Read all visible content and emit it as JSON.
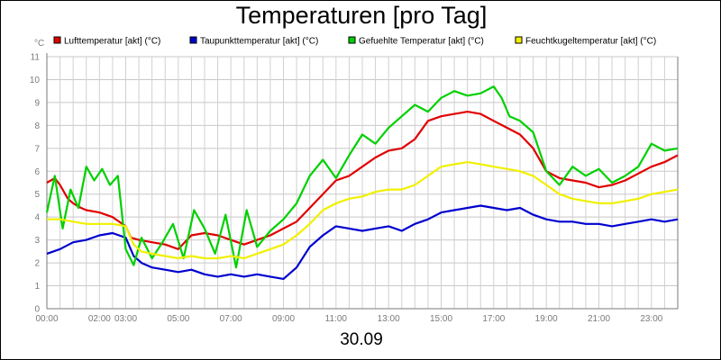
{
  "chart_data": {
    "type": "line",
    "title": "Temperaturen [pro Tag]",
    "xlabel": "30.09",
    "ylabel": "°C",
    "xlim": [
      0,
      24
    ],
    "ylim": [
      0,
      11
    ],
    "y_ticks": [
      "0",
      "1",
      "2",
      "3",
      "4",
      "5",
      "6",
      "7",
      "8",
      "9",
      "10",
      "11"
    ],
    "x_ticks": [
      {
        "label": "00:00",
        "at": 0
      },
      {
        "label": "02:00",
        "at": 2
      },
      {
        "label": "03:00",
        "at": 3
      },
      {
        "label": "05:00",
        "at": 5
      },
      {
        "label": "07:00",
        "at": 7
      },
      {
        "label": "09:00",
        "at": 9
      },
      {
        "label": "11:00",
        "at": 11
      },
      {
        "label": "13:00",
        "at": 13
      },
      {
        "label": "15:00",
        "at": 15
      },
      {
        "label": "17:00",
        "at": 17
      },
      {
        "label": "19:00",
        "at": 19
      },
      {
        "label": "21:00",
        "at": 21
      },
      {
        "label": "23:00",
        "at": 23
      }
    ],
    "grid": true,
    "legend_position": "top",
    "series": [
      {
        "name": "Lufttemperatur [akt] (°C)",
        "color": "#e00000",
        "x": [
          0,
          0.3,
          0.5,
          0.8,
          1,
          1.3,
          1.5,
          2,
          2.5,
          3,
          3.2,
          3.5,
          4,
          4.5,
          5,
          5.5,
          6,
          6.5,
          7,
          7.5,
          8,
          8.5,
          9,
          9.5,
          10,
          10.5,
          11,
          11.5,
          12,
          12.5,
          13,
          13.5,
          14,
          14.5,
          15,
          15.5,
          16,
          16.5,
          17,
          17.5,
          18,
          18.5,
          19,
          19.5,
          20,
          20.5,
          21,
          21.5,
          22,
          22.5,
          23,
          23.5,
          24
        ],
        "y": [
          5.5,
          5.7,
          5.4,
          4.8,
          4.6,
          4.4,
          4.3,
          4.2,
          4.0,
          3.6,
          3.1,
          3.0,
          2.9,
          2.8,
          2.6,
          3.2,
          3.3,
          3.2,
          3.0,
          2.8,
          3.0,
          3.2,
          3.5,
          3.8,
          4.4,
          5.0,
          5.6,
          5.8,
          6.2,
          6.6,
          6.9,
          7.0,
          7.4,
          8.2,
          8.4,
          8.5,
          8.6,
          8.5,
          8.2,
          7.9,
          7.6,
          7.0,
          6.0,
          5.7,
          5.6,
          5.5,
          5.3,
          5.4,
          5.6,
          5.9,
          6.2,
          6.4,
          6.7
        ]
      },
      {
        "name": "Taupunkttemperatur [akt] (°C)",
        "color": "#0000d0",
        "x": [
          0,
          0.5,
          1,
          1.5,
          2,
          2.5,
          3,
          3.3,
          3.6,
          4,
          4.5,
          5,
          5.5,
          6,
          6.5,
          7,
          7.5,
          8,
          8.5,
          9,
          9.5,
          10,
          10.5,
          11,
          11.5,
          12,
          12.5,
          13,
          13.5,
          14,
          14.5,
          15,
          15.5,
          16,
          16.5,
          17,
          17.5,
          18,
          18.5,
          19,
          19.5,
          20,
          20.5,
          21,
          21.5,
          22,
          22.5,
          23,
          23.5,
          24
        ],
        "y": [
          2.4,
          2.6,
          2.9,
          3.0,
          3.2,
          3.3,
          3.1,
          2.3,
          2.0,
          1.8,
          1.7,
          1.6,
          1.7,
          1.5,
          1.4,
          1.5,
          1.4,
          1.5,
          1.4,
          1.3,
          1.8,
          2.7,
          3.2,
          3.6,
          3.5,
          3.4,
          3.5,
          3.6,
          3.4,
          3.7,
          3.9,
          4.2,
          4.3,
          4.4,
          4.5,
          4.4,
          4.3,
          4.4,
          4.1,
          3.9,
          3.8,
          3.8,
          3.7,
          3.7,
          3.6,
          3.7,
          3.8,
          3.9,
          3.8,
          3.9
        ]
      },
      {
        "name": "Gefuehlte Temperatur [akt] (°C)",
        "color": "#00d000",
        "x": [
          0,
          0.3,
          0.6,
          0.9,
          1.2,
          1.5,
          1.8,
          2.1,
          2.4,
          2.7,
          3.0,
          3.3,
          3.6,
          4.0,
          4.4,
          4.8,
          5.2,
          5.6,
          6.0,
          6.4,
          6.8,
          7.2,
          7.6,
          8.0,
          8.5,
          9.0,
          9.5,
          10.0,
          10.5,
          11.0,
          11.5,
          12.0,
          12.5,
          13.0,
          13.5,
          14.0,
          14.5,
          15.0,
          15.5,
          16.0,
          16.5,
          17.0,
          17.3,
          17.6,
          18.0,
          18.5,
          19.0,
          19.5,
          20.0,
          20.5,
          21.0,
          21.5,
          22.0,
          22.5,
          23.0,
          23.5,
          24.0
        ],
        "y": [
          4.2,
          5.8,
          3.5,
          5.2,
          4.4,
          6.2,
          5.6,
          6.1,
          5.4,
          5.8,
          2.6,
          1.9,
          3.1,
          2.2,
          2.9,
          3.7,
          2.2,
          4.3,
          3.5,
          2.4,
          4.1,
          1.8,
          4.3,
          2.7,
          3.4,
          3.9,
          4.6,
          5.8,
          6.5,
          5.7,
          6.7,
          7.6,
          7.2,
          7.9,
          8.4,
          8.9,
          8.6,
          9.2,
          9.5,
          9.3,
          9.4,
          9.7,
          9.2,
          8.4,
          8.2,
          7.7,
          6.0,
          5.4,
          6.2,
          5.8,
          6.1,
          5.5,
          5.8,
          6.2,
          7.2,
          6.9,
          7.0
        ]
      },
      {
        "name": "Feuchtkugeltemperatur [akt] (°C)",
        "color": "#f0f000",
        "x": [
          0,
          0.5,
          1,
          1.5,
          2,
          2.5,
          3,
          3.3,
          3.6,
          4,
          4.5,
          5,
          5.5,
          6,
          6.5,
          7,
          7.5,
          8,
          8.5,
          9,
          9.5,
          10,
          10.5,
          11,
          11.5,
          12,
          12.5,
          13,
          13.5,
          14,
          14.5,
          15,
          15.5,
          16,
          16.5,
          17,
          17.5,
          18,
          18.5,
          19,
          19.5,
          20,
          20.5,
          21,
          21.5,
          22,
          22.5,
          23,
          23.5,
          24
        ],
        "y": [
          3.9,
          3.9,
          3.8,
          3.7,
          3.7,
          3.7,
          3.6,
          2.8,
          2.5,
          2.4,
          2.3,
          2.2,
          2.3,
          2.2,
          2.2,
          2.3,
          2.2,
          2.4,
          2.6,
          2.8,
          3.2,
          3.7,
          4.3,
          4.6,
          4.8,
          4.9,
          5.1,
          5.2,
          5.2,
          5.4,
          5.8,
          6.2,
          6.3,
          6.4,
          6.3,
          6.2,
          6.1,
          6.0,
          5.8,
          5.4,
          5.0,
          4.8,
          4.7,
          4.6,
          4.6,
          4.7,
          4.8,
          5.0,
          5.1,
          5.2
        ]
      }
    ]
  }
}
